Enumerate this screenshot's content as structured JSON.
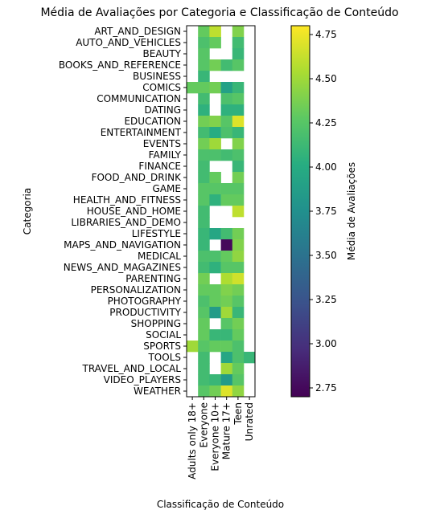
{
  "chart_data": {
    "type": "heatmap",
    "title": "Média de Avaliações por Categoria e Classificação de Conteúdo",
    "xlabel": "Classificação de Conteúdo",
    "ylabel": "Categoria",
    "columns": [
      "Adults only 18+",
      "Everyone",
      "Everyone 10+",
      "Mature 17+",
      "Teen",
      "Unrated"
    ],
    "rows": [
      "ART_AND_DESIGN",
      "AUTO_AND_VEHICLES",
      "BEAUTY",
      "BOOKS_AND_REFERENCE",
      "BUSINESS",
      "COMICS",
      "COMMUNICATION",
      "DATING",
      "EDUCATION",
      "ENTERTAINMENT",
      "EVENTS",
      "FAMILY",
      "FINANCE",
      "FOOD_AND_DRINK",
      "GAME",
      "HEALTH_AND_FITNESS",
      "HOUSE_AND_HOME",
      "LIBRARIES_AND_DEMO",
      "LIFESTYLE",
      "MAPS_AND_NAVIGATION",
      "MEDICAL",
      "NEWS_AND_MAGAZINES",
      "PARENTING",
      "PERSONALIZATION",
      "PHOTOGRAPHY",
      "PRODUCTIVITY",
      "SHOPPING",
      "SOCIAL",
      "SPORTS",
      "TOOLS",
      "TRAVEL_AND_LOCAL",
      "VIDEO_PLAYERS",
      "WEATHER"
    ],
    "values": [
      [
        null,
        4.3,
        4.6,
        null,
        4.4,
        null
      ],
      [
        null,
        4.2,
        4.3,
        null,
        4.15,
        null
      ],
      [
        null,
        4.25,
        null,
        null,
        4.1,
        null
      ],
      [
        null,
        4.25,
        4.35,
        4.15,
        4.25,
        null
      ],
      [
        null,
        4.1,
        null,
        null,
        null,
        null
      ],
      [
        4.3,
        4.3,
        4.35,
        3.9,
        4.1,
        null
      ],
      [
        null,
        4.15,
        null,
        4.2,
        4.25,
        null
      ],
      [
        null,
        4.05,
        null,
        4.05,
        4.05,
        null
      ],
      [
        null,
        4.35,
        4.4,
        4.25,
        4.7,
        null
      ],
      [
        null,
        4.15,
        4.0,
        4.2,
        4.1,
        null
      ],
      [
        null,
        4.35,
        4.5,
        null,
        4.4,
        null
      ],
      [
        null,
        4.2,
        4.2,
        4.15,
        4.2,
        null
      ],
      [
        null,
        4.15,
        null,
        null,
        4.1,
        null
      ],
      [
        null,
        4.15,
        4.3,
        null,
        4.35,
        null
      ],
      [
        null,
        4.25,
        4.25,
        4.25,
        4.25,
        null
      ],
      [
        null,
        4.25,
        4.05,
        4.3,
        4.3,
        null
      ],
      [
        null,
        4.15,
        null,
        null,
        4.6,
        null
      ],
      [
        null,
        4.15,
        null,
        null,
        null,
        null
      ],
      [
        null,
        4.1,
        3.95,
        4.15,
        4.35,
        null
      ],
      [
        null,
        4.1,
        null,
        2.75,
        4.4,
        null
      ],
      [
        null,
        4.2,
        4.2,
        4.3,
        4.45,
        null
      ],
      [
        null,
        4.15,
        4.05,
        4.25,
        4.25,
        null
      ],
      [
        null,
        4.35,
        null,
        4.55,
        4.65,
        null
      ],
      [
        null,
        4.3,
        4.3,
        4.4,
        4.35,
        null
      ],
      [
        null,
        4.2,
        4.3,
        4.35,
        4.25,
        null
      ],
      [
        null,
        4.25,
        3.85,
        4.5,
        4.1,
        null
      ],
      [
        null,
        4.3,
        null,
        4.25,
        4.35,
        null
      ],
      [
        null,
        4.3,
        4.1,
        4.1,
        4.3,
        null
      ],
      [
        4.5,
        4.25,
        4.3,
        4.3,
        4.2,
        null
      ],
      [
        null,
        4.15,
        null,
        3.95,
        4.2,
        4.1
      ],
      [
        null,
        4.15,
        null,
        4.5,
        4.3,
        null
      ],
      [
        null,
        4.15,
        4.1,
        3.85,
        4.25,
        null
      ],
      [
        null,
        4.25,
        4.35,
        4.7,
        4.45,
        null
      ]
    ],
    "colorbar": {
      "label": "Média de Avaliações",
      "range": [
        2.7,
        4.8
      ],
      "ticks": [
        "2.75",
        "3.00",
        "3.25",
        "3.50",
        "3.75",
        "4.00",
        "4.25",
        "4.50",
        "4.75"
      ],
      "colormap": "viridis"
    }
  }
}
